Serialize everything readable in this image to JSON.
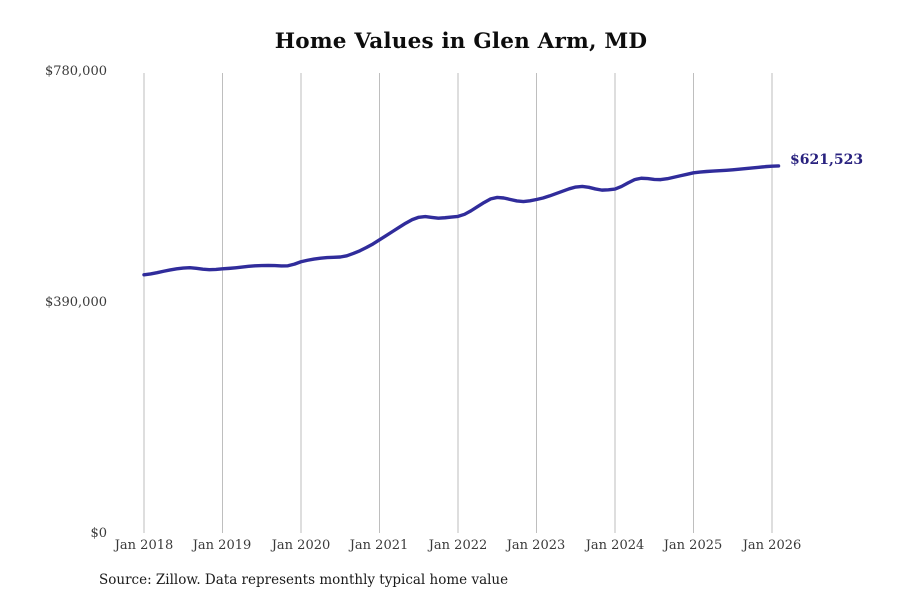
{
  "title": "Home Values in Glen Arm, MD",
  "source_note": "Source: Zillow. Data represents monthly typical home value",
  "latest_value_label": "$621,523",
  "colors": {
    "line": "#302c9b",
    "latest_value_label": "#29227f",
    "gridline": "#bebebe"
  },
  "y_axis": {
    "tick_labels": [
      "$780,000",
      "$390,000",
      "$0"
    ]
  },
  "x_axis": {
    "tick_labels": [
      "Jan 2018",
      "Jan 2019",
      "Jan 2020",
      "Jan 2021",
      "Jan 2022",
      "Jan 2023",
      "Jan 2024",
      "Jan 2025",
      "Jan 2026"
    ]
  },
  "chart_data": {
    "type": "line",
    "title": "Home Values in Glen Arm, MD",
    "xlabel": "",
    "ylabel": "",
    "ylim": [
      0,
      780000
    ],
    "y_ticks": [
      0,
      390000,
      780000
    ],
    "y_tick_labels": [
      "$0",
      "$390,000",
      "$780,000"
    ],
    "x_tick_labels": [
      "Jan 2018",
      "Jan 2019",
      "Jan 2020",
      "Jan 2021",
      "Jan 2022",
      "Jan 2023",
      "Jan 2024",
      "Jan 2025",
      "Jan 2026"
    ],
    "grid": "vertical-only",
    "legend": "none",
    "annotation": {
      "text": "$621,523",
      "at": "last-point"
    },
    "series": [
      {
        "name": "Typical home value",
        "start_month": "2018-01",
        "interval": "monthly",
        "x": [
          "2018-01",
          "2018-02",
          "2018-03",
          "2018-04",
          "2018-05",
          "2018-06",
          "2018-07",
          "2018-08",
          "2018-09",
          "2018-10",
          "2018-11",
          "2018-12",
          "2019-01",
          "2019-02",
          "2019-03",
          "2019-04",
          "2019-05",
          "2019-06",
          "2019-07",
          "2019-08",
          "2019-09",
          "2019-10",
          "2019-11",
          "2019-12",
          "2020-01",
          "2020-02",
          "2020-03",
          "2020-04",
          "2020-05",
          "2020-06",
          "2020-07",
          "2020-08",
          "2020-09",
          "2020-10",
          "2020-11",
          "2020-12",
          "2021-01",
          "2021-02",
          "2021-03",
          "2021-04",
          "2021-05",
          "2021-06",
          "2021-07",
          "2021-08",
          "2021-09",
          "2021-10",
          "2021-11",
          "2021-12",
          "2022-01",
          "2022-02",
          "2022-03",
          "2022-04",
          "2022-05",
          "2022-06",
          "2022-07",
          "2022-08",
          "2022-09",
          "2022-10",
          "2022-11",
          "2022-12",
          "2023-01",
          "2023-02",
          "2023-03",
          "2023-04",
          "2023-05",
          "2023-06",
          "2023-07",
          "2023-08",
          "2023-09",
          "2023-10",
          "2023-11",
          "2023-12",
          "2024-01",
          "2024-02",
          "2024-03",
          "2024-04",
          "2024-05",
          "2024-06",
          "2024-07",
          "2024-08",
          "2024-09",
          "2024-10",
          "2024-11",
          "2024-12",
          "2025-01",
          "2025-02",
          "2025-03",
          "2025-04",
          "2025-05",
          "2025-06",
          "2025-07",
          "2025-08",
          "2025-09",
          "2025-10",
          "2025-11",
          "2025-12",
          "2026-01",
          "2026-02"
        ],
        "values": [
          438000,
          439500,
          441500,
          444000,
          446200,
          448000,
          449300,
          450000,
          449000,
          447500,
          446600,
          447000,
          448000,
          448800,
          449800,
          451000,
          452200,
          453200,
          453600,
          453800,
          453500,
          453000,
          453200,
          456000,
          460000,
          462500,
          464500,
          466000,
          467000,
          467500,
          468000,
          470000,
          474000,
          478500,
          484000,
          490000,
          497000,
          504000,
          511000,
          518000,
          525000,
          531000,
          535000,
          536200,
          534800,
          533500,
          534200,
          535300,
          536500,
          540000,
          546000,
          553000,
          560000,
          566000,
          568500,
          567500,
          565000,
          562500,
          561500,
          562800,
          565000,
          567500,
          571000,
          575000,
          579000,
          583000,
          586000,
          587000,
          585500,
          582800,
          580800,
          581300,
          582500,
          587000,
          593000,
          598500,
          600800,
          600300,
          598800,
          598500,
          600000,
          602500,
          605000,
          607500,
          610000,
          611200,
          612200,
          613000,
          613600,
          614200,
          615000,
          616000,
          617200,
          618300,
          619300,
          620400,
          621200,
          621523
        ]
      }
    ]
  }
}
